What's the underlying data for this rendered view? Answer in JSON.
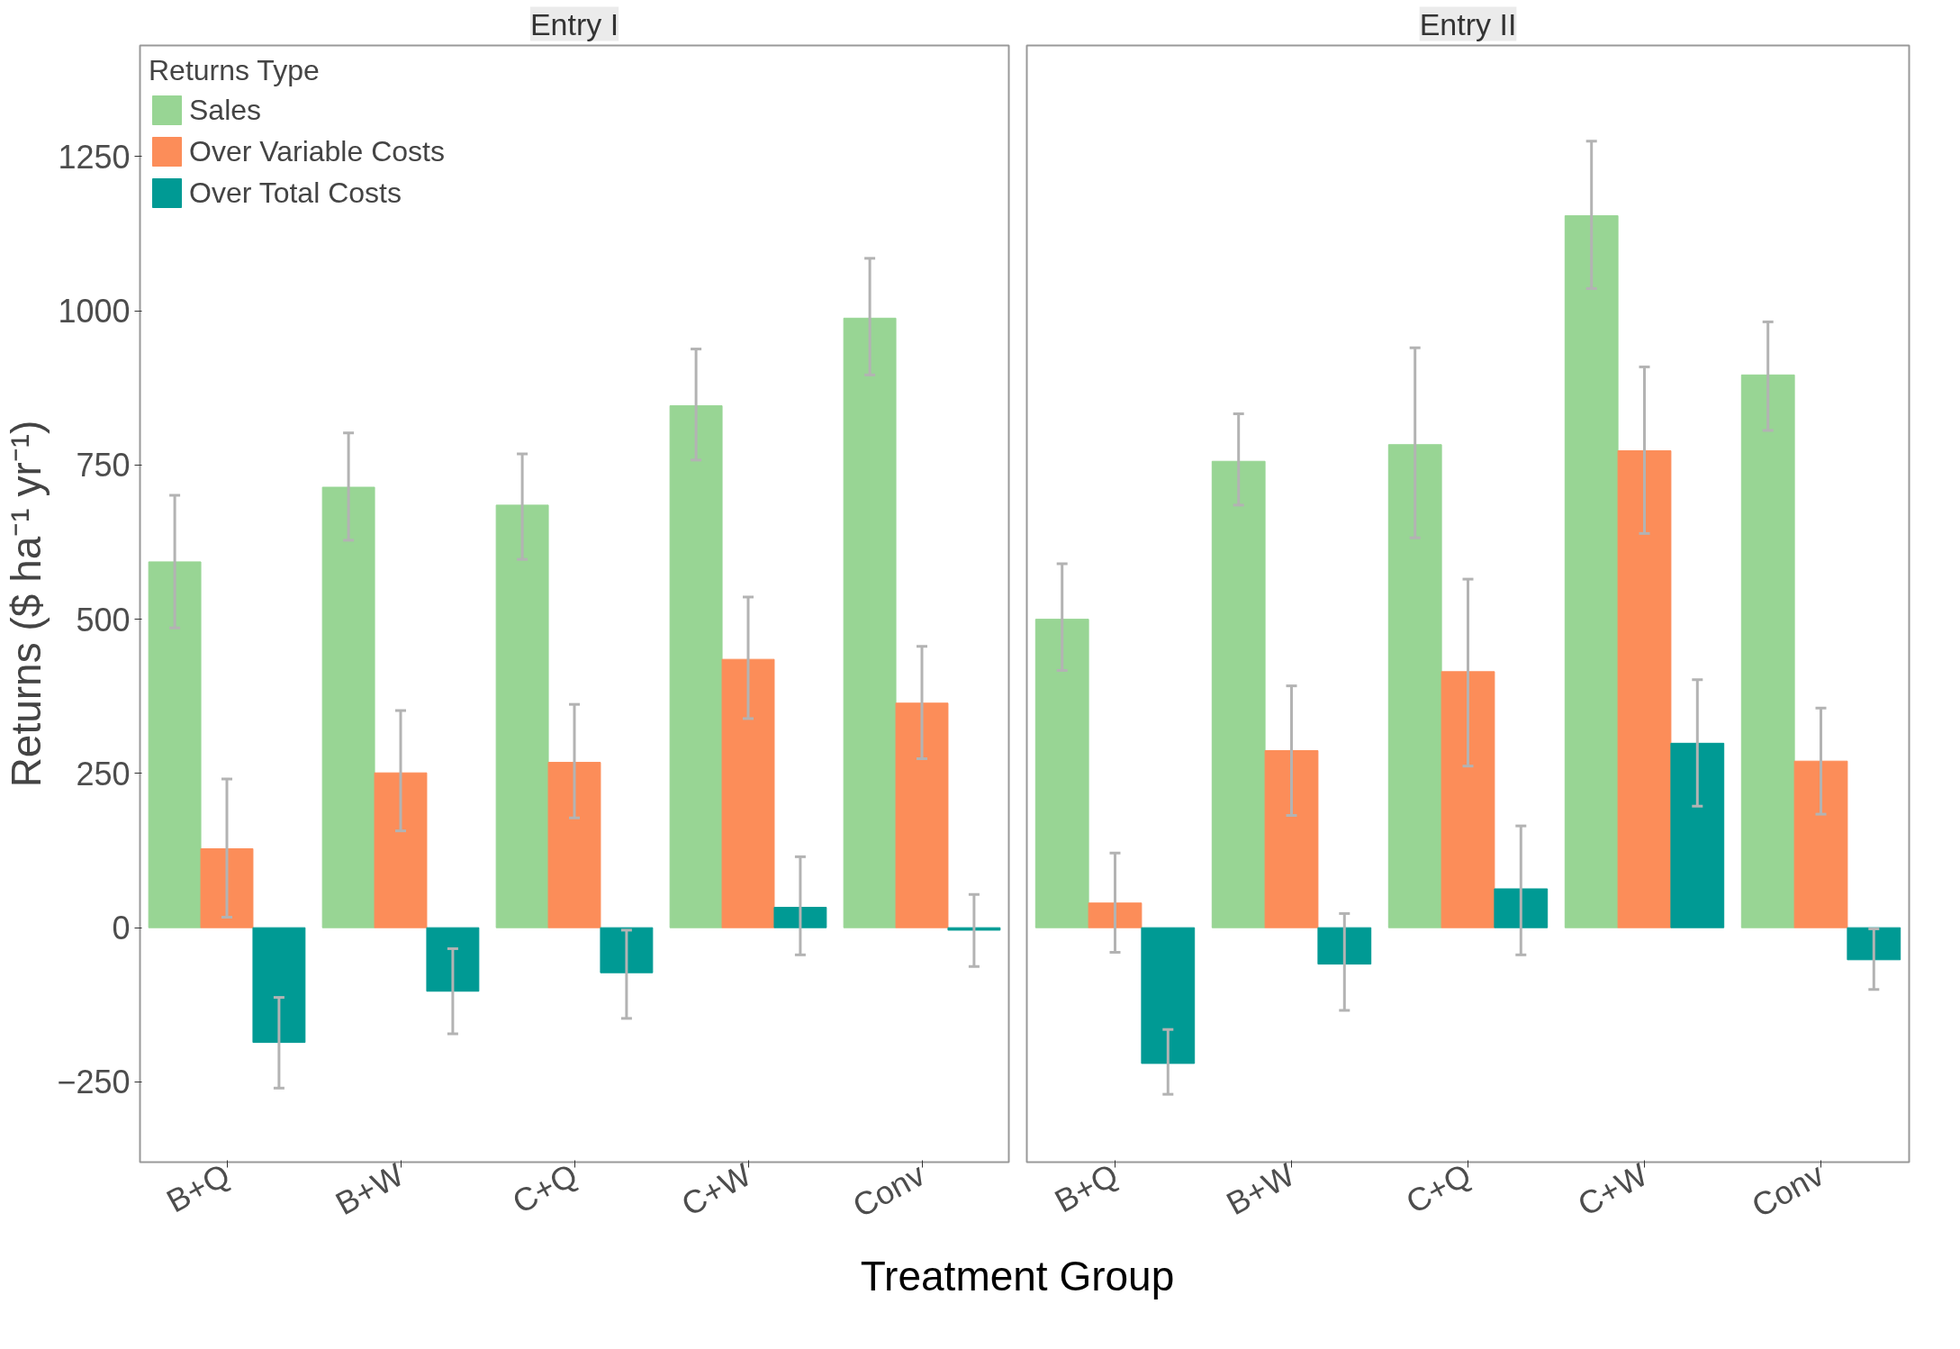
{
  "chart_data": [
    {
      "type": "bar",
      "title": "Entry I",
      "ylabel": "Returns ($ ha⁻¹ yr⁻¹)",
      "xlabel": "Treatment Group",
      "categories": [
        "B+Q",
        "B+W",
        "C+Q",
        "C+W",
        "Conv"
      ],
      "ylim": [
        -380,
        1430
      ],
      "yticks": [
        -250,
        0,
        250,
        500,
        750,
        1000,
        1250
      ],
      "grid": false,
      "legend": "top left",
      "legend_title": "Returns Type",
      "series": [
        {
          "name": "Sales",
          "color": "#98d594",
          "values": [
            593,
            714,
            685,
            846,
            988
          ],
          "errors": [
            [
              486,
              701
            ],
            [
              628,
              802
            ],
            [
              597,
              768
            ],
            [
              758,
              938
            ],
            [
              896,
              1085
            ]
          ]
        },
        {
          "name": "Over Variable Costs",
          "color": "#fc8d59",
          "values": [
            128,
            251,
            268,
            435,
            364
          ],
          "errors": [
            [
              17,
              241
            ],
            [
              157,
              352
            ],
            [
              178,
              362
            ],
            [
              339,
              536
            ],
            [
              274,
              456
            ]
          ]
        },
        {
          "name": "Over Total Costs",
          "color": "#009a94",
          "values": [
            -186,
            -103,
            -73,
            33,
            -4
          ],
          "errors": [
            [
              -260,
              -113
            ],
            [
              -172,
              -34
            ],
            [
              -147,
              -4
            ],
            [
              -44,
              115
            ],
            [
              -63,
              54
            ]
          ]
        }
      ]
    },
    {
      "type": "bar",
      "title": "Entry II",
      "categories": [
        "B+Q",
        "B+W",
        "C+Q",
        "C+W",
        "Conv"
      ],
      "ylim": [
        -380,
        1430
      ],
      "grid": false,
      "tick_labels": "x",
      "series": [
        {
          "color": "#98d594",
          "values": [
            500,
            756,
            783,
            1154,
            896
          ],
          "errors": [
            [
              417,
              590
            ],
            [
              685,
              833
            ],
            [
              632,
              940
            ],
            [
              1036,
              1275
            ],
            [
              806,
              982
            ]
          ]
        },
        {
          "color": "#fc8d59",
          "values": [
            40,
            287,
            415,
            773,
            270
          ],
          "errors": [
            [
              -40,
              121
            ],
            [
              182,
              392
            ],
            [
              262,
              565
            ],
            [
              639,
              909
            ],
            [
              184,
              356
            ]
          ]
        },
        {
          "color": "#009a94",
          "values": [
            -220,
            -59,
            63,
            299,
            -52
          ],
          "errors": [
            [
              -270,
              -165
            ],
            [
              -134,
              23
            ],
            [
              -44,
              165
            ],
            [
              197,
              402
            ],
            [
              -100,
              -2
            ]
          ]
        }
      ]
    }
  ]
}
